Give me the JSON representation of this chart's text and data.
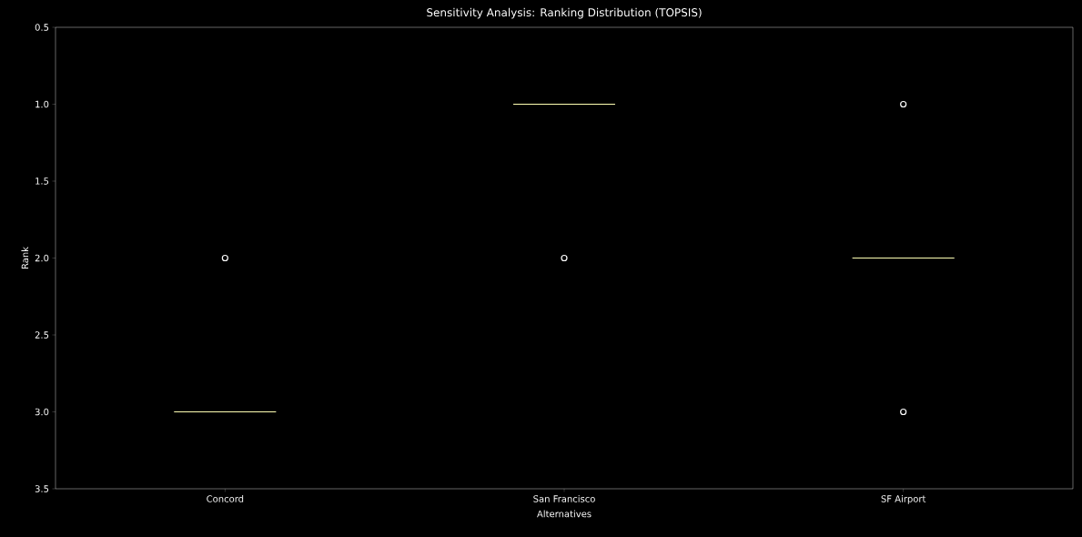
{
  "chart_data": {
    "type": "box",
    "title": "Sensitivity Analysis: Ranking Distribution (TOPSIS)",
    "xlabel": "Alternatives",
    "ylabel": "Rank",
    "categories": [
      "Concord",
      "San Francisco",
      "SF Airport"
    ],
    "boxes": [
      {
        "low": 3,
        "q1": 3,
        "median": 3,
        "q3": 3,
        "high": 3,
        "outliers": [
          2
        ]
      },
      {
        "low": 1,
        "q1": 1,
        "median": 1,
        "q3": 1,
        "high": 1,
        "outliers": [
          2
        ]
      },
      {
        "low": 2,
        "q1": 2,
        "median": 2,
        "q3": 2,
        "high": 2,
        "outliers": [
          1,
          3
        ]
      }
    ],
    "ylim": [
      3.5,
      0.5
    ],
    "yticks": [
      {
        "value": 0.5,
        "label": "0.5"
      },
      {
        "value": 1,
        "label": "1.0"
      },
      {
        "value": 1.5,
        "label": "1.5"
      },
      {
        "value": 2,
        "label": "2.0"
      },
      {
        "value": 2.5,
        "label": "2.5"
      },
      {
        "value": 3,
        "label": "3.0"
      },
      {
        "value": 3.5,
        "label": "3.5"
      }
    ]
  }
}
